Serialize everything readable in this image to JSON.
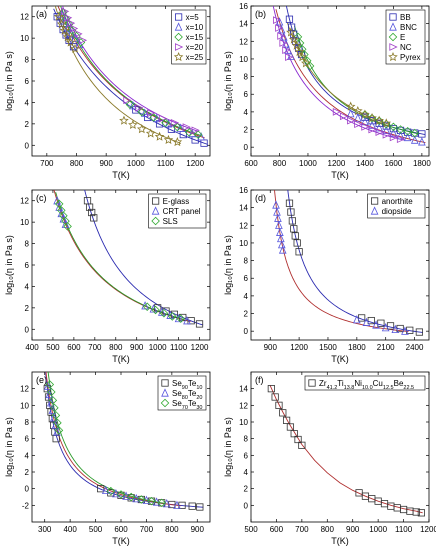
{
  "chart_data": [
    {
      "panel_label": "(a)",
      "type": "scatter",
      "xlabel": "T(K)",
      "ylabel": "log₁₀(η in Pa s)",
      "xlim": [
        650,
        1250
      ],
      "ylim": [
        -1,
        13
      ],
      "xticks": [
        700,
        800,
        900,
        1000,
        1100,
        1200
      ],
      "yticks": [
        0,
        2,
        4,
        6,
        8,
        10,
        12
      ],
      "legend_position": "top-right",
      "series": [
        {
          "name": "x=5",
          "marker": "square",
          "color": "#2b2bb0",
          "x": [
            735,
            745,
            755,
            765,
            775,
            790,
            1000,
            1040,
            1080,
            1120,
            1160,
            1200,
            1230
          ],
          "y": [
            12.0,
            11.4,
            10.8,
            10.3,
            9.8,
            9.2,
            3.3,
            2.6,
            2.0,
            1.5,
            1.0,
            0.5,
            0.2
          ]
        },
        {
          "name": "x=10",
          "marker": "triangle-up",
          "color": "#5555dd",
          "x": [
            750,
            760,
            770,
            780,
            795,
            810,
            990,
            1030,
            1070,
            1110,
            1150,
            1190,
            1220
          ],
          "y": [
            12.2,
            11.6,
            11.0,
            10.5,
            10.0,
            9.4,
            3.7,
            3.0,
            2.5,
            2.0,
            1.6,
            1.1,
            0.8
          ]
        },
        {
          "name": "x=15",
          "marker": "diamond",
          "color": "#33aa33",
          "x": [
            755,
            765,
            775,
            785,
            800,
            815,
            980,
            1020,
            1060,
            1100,
            1140,
            1180,
            1210
          ],
          "y": [
            12.4,
            11.8,
            11.3,
            10.7,
            10.2,
            9.6,
            3.8,
            3.1,
            2.6,
            2.1,
            1.7,
            1.2,
            1.0
          ]
        },
        {
          "name": "x=20",
          "marker": "triangle-right",
          "color": "#a040c8",
          "x": [
            760,
            770,
            780,
            790,
            805,
            820,
            970,
            1010,
            1050,
            1090,
            1130,
            1170,
            1200
          ],
          "y": [
            12.5,
            11.9,
            11.4,
            10.9,
            10.4,
            9.8,
            4.2,
            3.5,
            3.0,
            2.5,
            2.1,
            1.7,
            1.4
          ]
        },
        {
          "name": "x=25",
          "marker": "star",
          "color": "#8a7a2a",
          "x": [
            740,
            750,
            760,
            770,
            780,
            795,
            960,
            990,
            1020,
            1050,
            1080,
            1110,
            1140
          ],
          "y": [
            12.0,
            11.3,
            10.7,
            10.1,
            9.6,
            9.0,
            2.3,
            1.9,
            1.5,
            1.1,
            0.8,
            0.5,
            0.3
          ]
        }
      ]
    },
    {
      "panel_label": "(b)",
      "type": "scatter",
      "xlabel": "T(K)",
      "ylabel": "log₁₀(η in Pa s)",
      "xlim": [
        600,
        1850
      ],
      "ylim": [
        -1,
        16
      ],
      "xticks": [
        600,
        800,
        1000,
        1200,
        1400,
        1600,
        1800
      ],
      "yticks": [
        0,
        2,
        4,
        6,
        8,
        10,
        12,
        14,
        16
      ],
      "legend_position": "top-right",
      "series": [
        {
          "name": "BB",
          "marker": "square",
          "color": "#2b2bb0",
          "x": [
            870,
            885,
            900,
            915,
            935,
            955,
            1400,
            1450,
            1500,
            1550,
            1600,
            1650,
            1700,
            1750,
            1800
          ],
          "y": [
            14.5,
            13.6,
            12.8,
            12.0,
            11.2,
            10.5,
            3.4,
            3.0,
            2.7,
            2.4,
            2.1,
            1.9,
            1.7,
            1.6,
            1.5
          ]
        },
        {
          "name": "BNC",
          "marker": "triangle-up",
          "color": "#5555dd",
          "x": [
            800,
            815,
            830,
            845,
            860,
            880,
            1300,
            1350,
            1400,
            1450,
            1500,
            1550,
            1600,
            1650,
            1700,
            1750,
            1800
          ],
          "y": [
            14.2,
            13.3,
            12.5,
            11.7,
            11.0,
            10.3,
            3.8,
            3.3,
            2.9,
            2.5,
            2.2,
            1.9,
            1.6,
            1.3,
            1.1,
            0.8,
            0.6
          ]
        },
        {
          "name": "E",
          "marker": "diamond",
          "color": "#33aa33",
          "x": [
            930,
            945,
            960,
            975,
            995,
            1015,
            1400,
            1450,
            1500,
            1550,
            1600,
            1650,
            1700,
            1750
          ],
          "y": [
            12.5,
            11.8,
            11.1,
            10.5,
            9.8,
            9.2,
            3.7,
            3.3,
            3.0,
            2.6,
            2.3,
            2.0,
            1.8,
            1.6
          ]
        },
        {
          "name": "NC",
          "marker": "triangle-right",
          "color": "#a040c8",
          "x": [
            780,
            795,
            810,
            825,
            845,
            865,
            1200,
            1250,
            1300,
            1350,
            1400,
            1450,
            1500,
            1550,
            1600,
            1650
          ],
          "y": [
            14.4,
            13.5,
            12.6,
            11.8,
            11.0,
            10.2,
            4.0,
            3.5,
            3.0,
            2.6,
            2.3,
            2.0,
            1.7,
            1.4,
            1.1,
            0.9
          ]
        },
        {
          "name": "Pyrex",
          "marker": "star",
          "color": "#8a7a2a",
          "x": [
            880,
            900,
            920,
            940,
            960,
            985,
            1300,
            1350,
            1400,
            1450,
            1500,
            1550
          ],
          "y": [
            13.0,
            12.2,
            11.5,
            10.8,
            10.2,
            9.5,
            4.6,
            4.1,
            3.7,
            3.3,
            3.0,
            2.7
          ]
        }
      ]
    },
    {
      "panel_label": "(c)",
      "type": "scatter",
      "xlabel": "T(K)",
      "ylabel": "log₁₀(η in Pa s)",
      "xlim": [
        400,
        1250
      ],
      "ylim": [
        -1,
        13
      ],
      "xticks": [
        400,
        500,
        600,
        700,
        800,
        900,
        1000,
        1100,
        1200
      ],
      "yticks": [
        0,
        2,
        4,
        6,
        8,
        10,
        12
      ],
      "legend_position": "top-right",
      "series": [
        {
          "name": "E-glass",
          "marker": "square",
          "color": "#333333",
          "x": [
            665,
            675,
            685,
            695,
            1000,
            1040,
            1080,
            1120,
            1160,
            1200
          ],
          "y": [
            12.0,
            11.4,
            10.9,
            10.4,
            2.0,
            1.7,
            1.4,
            1.1,
            0.8,
            0.5
          ]
        },
        {
          "name": "CRT panel",
          "marker": "triangle-up",
          "color": "#5555dd",
          "x": [
            520,
            530,
            540,
            550,
            560,
            940,
            980,
            1020,
            1060,
            1100,
            1140
          ],
          "y": [
            12.0,
            11.4,
            10.8,
            10.3,
            9.8,
            2.2,
            1.9,
            1.6,
            1.3,
            1.0,
            0.8
          ]
        },
        {
          "name": "SLS",
          "marker": "diamond",
          "color": "#33aa33",
          "x": [
            530,
            540,
            550,
            560,
            570,
            950,
            990,
            1030,
            1070,
            1110
          ],
          "y": [
            11.7,
            11.1,
            10.6,
            10.1,
            9.6,
            2.1,
            1.8,
            1.5,
            1.2,
            1.0
          ]
        }
      ]
    },
    {
      "panel_label": "(d)",
      "type": "scatter",
      "xlabel": "T(K)",
      "ylabel": "log₁₀(η in Pa s)",
      "xlim": [
        700,
        2550
      ],
      "ylim": [
        -1,
        16
      ],
      "xticks": [
        900,
        1200,
        1500,
        1800,
        2100,
        2400
      ],
      "yticks": [
        0,
        2,
        4,
        6,
        8,
        10,
        12,
        14,
        16
      ],
      "legend_position": "top-right",
      "series": [
        {
          "name": "anorthite",
          "marker": "square",
          "color": "#333333",
          "x": [
            1100,
            1115,
            1130,
            1145,
            1160,
            1180,
            1200,
            1850,
            1950,
            2050,
            2150,
            2250,
            2350,
            2450
          ],
          "y": [
            14.5,
            13.5,
            12.5,
            11.6,
            10.8,
            10.0,
            9.0,
            1.5,
            1.2,
            0.9,
            0.6,
            0.3,
            0.1,
            -0.1
          ]
        },
        {
          "name": "diopside",
          "marker": "triangle-up",
          "color": "#5555dd",
          "x": [
            960,
            970,
            980,
            990,
            1000,
            1010,
            1020,
            1030,
            1800,
            1900,
            2000,
            2100,
            2200,
            2300
          ],
          "y": [
            14.3,
            13.5,
            12.8,
            12.0,
            11.2,
            10.5,
            9.8,
            9.2,
            1.3,
            1.0,
            0.7,
            0.4,
            0.2,
            0.0
          ]
        }
      ]
    },
    {
      "panel_label": "(e)",
      "type": "scatter",
      "xlabel": "T(K)",
      "ylabel": "log₁₀(η in Pa s)",
      "xlim": [
        250,
        950
      ],
      "ylim": [
        -4,
        14
      ],
      "xticks": [
        300,
        400,
        500,
        600,
        700,
        800,
        900
      ],
      "yticks": [
        -2,
        0,
        2,
        4,
        6,
        8,
        10,
        12
      ],
      "legend_position": "top-right",
      "legend_rich": [
        {
          "base": "Se",
          "sub1": "90",
          "mid": "Te",
          "sub2": "10"
        },
        {
          "base": "Se",
          "sub1": "80",
          "mid": "Te",
          "sub2": "20"
        },
        {
          "base": "Se",
          "sub1": "70",
          "mid": "Te",
          "sub2": "30"
        }
      ],
      "series": [
        {
          "name": "Se90Te10",
          "marker": "square",
          "color": "#333333",
          "x": [
            310,
            315,
            320,
            325,
            330,
            335,
            340,
            345,
            520,
            560,
            600,
            640,
            680,
            720,
            760,
            800,
            840,
            880,
            910
          ],
          "y": [
            12.0,
            11.0,
            10.0,
            9.2,
            8.4,
            7.6,
            6.8,
            6.0,
            0.0,
            -0.5,
            -0.8,
            -1.1,
            -1.3,
            -1.5,
            -1.7,
            -1.9,
            -2.0,
            -2.1,
            -2.2
          ]
        },
        {
          "name": "Se80Te20",
          "marker": "triangle-up",
          "color": "#5555dd",
          "x": [
            312,
            318,
            324,
            330,
            336,
            342,
            348,
            540,
            580,
            620,
            660,
            700,
            740,
            780,
            820
          ],
          "y": [
            12.3,
            11.3,
            10.3,
            9.4,
            8.5,
            7.6,
            6.8,
            -0.2,
            -0.6,
            -0.9,
            -1.2,
            -1.4,
            -1.6,
            -1.8,
            -2.0
          ]
        },
        {
          "name": "Se70Te30",
          "marker": "diamond",
          "color": "#33aa33",
          "x": [
            320,
            326,
            332,
            338,
            344,
            350,
            356,
            560,
            600,
            640,
            680,
            720,
            760
          ],
          "y": [
            12.5,
            11.6,
            10.6,
            9.7,
            8.8,
            7.9,
            7.0,
            -0.3,
            -0.7,
            -1.0,
            -1.3,
            -1.5,
            -1.7
          ]
        }
      ]
    },
    {
      "panel_label": "(f)",
      "type": "scatter",
      "xlabel": "T(K)",
      "ylabel": "log₁₀(η in Pa s)",
      "xlim": [
        500,
        1200
      ],
      "ylim": [
        -2,
        16
      ],
      "xticks": [
        500,
        600,
        700,
        800,
        900,
        1000,
        1100,
        1200
      ],
      "yticks": [
        0,
        2,
        4,
        6,
        8,
        10,
        12,
        14
      ],
      "legend_position": "top-right",
      "legend_rich": [
        {
          "parts": [
            [
              "Zr",
              ""
            ],
            [
              "41.2",
              "sub"
            ],
            [
              "Ti",
              ""
            ],
            [
              "13.8",
              "sub"
            ],
            [
              "Ni",
              ""
            ],
            [
              "10.0",
              "sub"
            ],
            [
              "Cu",
              ""
            ],
            [
              "12.5",
              "sub"
            ],
            [
              "Be",
              ""
            ],
            [
              "22.5",
              "sub"
            ]
          ]
        }
      ],
      "series": [
        {
          "name": "Zr41.2Ti13.8Ni10.0Cu12.5Be22.5",
          "marker": "square",
          "color": "#333333",
          "x": [
            580,
            595,
            610,
            625,
            640,
            655,
            670,
            685,
            700,
            925,
            950,
            975,
            1000,
            1025,
            1050,
            1075,
            1100,
            1125,
            1150,
            1170
          ],
          "y": [
            14.0,
            13.0,
            12.0,
            11.1,
            10.2,
            9.4,
            8.6,
            7.9,
            7.2,
            1.5,
            1.1,
            0.8,
            0.5,
            0.2,
            -0.1,
            -0.3,
            -0.5,
            -0.7,
            -0.8,
            -0.9
          ]
        }
      ],
      "fit": {
        "x": [
          575,
          600,
          625,
          650,
          700,
          750,
          800,
          850,
          900,
          950,
          1000,
          1050,
          1100,
          1150,
          1175
        ],
        "y": [
          14.4,
          12.7,
          11.2,
          9.8,
          7.3,
          5.4,
          3.9,
          2.7,
          1.8,
          1.1,
          0.5,
          0.0,
          -0.4,
          -0.7,
          -0.9
        ]
      }
    }
  ]
}
